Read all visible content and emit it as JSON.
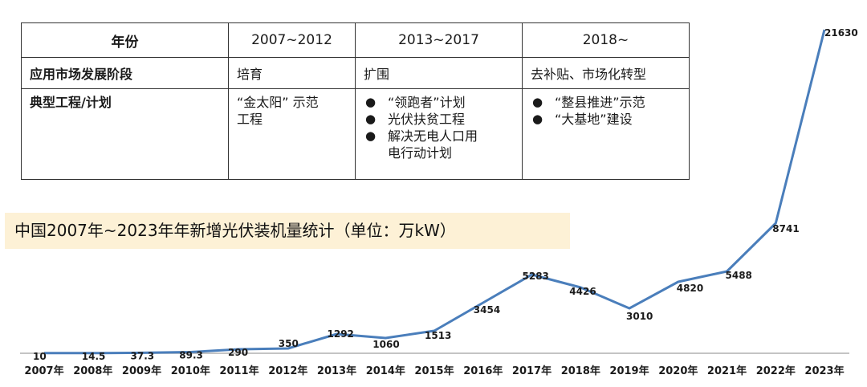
{
  "table": {
    "header": [
      "年份",
      "2007~2012",
      "2013~2017",
      "2018~"
    ],
    "rows": [
      {
        "label": "应用市场发展阶段",
        "cells": [
          [
            "培育"
          ],
          [
            "扩围"
          ],
          [
            "去补贴、市场化转型"
          ]
        ]
      },
      {
        "label": "典型工程/计划",
        "cells": [
          [
            "“金太阳” 示范",
            "工程"
          ],
          [
            "“领跑者”计划",
            "光伏扶贫工程",
            "解决无电人口用",
            "电行动计划"
          ],
          [
            "“整县推进”示范",
            "“大基地”建设"
          ]
        ]
      }
    ],
    "bullet_symbol": "●"
  },
  "chart_title": "中国2007年~2023年年新增光伏装机量统计（单位：万kW）",
  "chart_data": {
    "type": "line",
    "title": "中国2007年~2023年年新增光伏装机量统计（单位：万kW）",
    "unit": "万kW",
    "categories": [
      "2007年",
      "2008年",
      "2009年",
      "2010年",
      "2011年",
      "2012年",
      "2013年",
      "2014年",
      "2015年",
      "2016年",
      "2017年",
      "2018年",
      "2019年",
      "2020年",
      "2021年",
      "2022年",
      "2023年"
    ],
    "values": [
      10,
      14.5,
      37.3,
      89.3,
      290,
      350,
      1292,
      1060,
      1513,
      3454,
      5283,
      4426,
      3010,
      4820,
      5488,
      8741,
      21630
    ],
    "labels": [
      "10",
      "14.5",
      "37.3",
      "89.3",
      "290",
      "350",
      "1292",
      "1060",
      "1513",
      "3454",
      "5283",
      "4426",
      "3010",
      "4820",
      "5488",
      "8741",
      "21630"
    ],
    "xlabel": "",
    "ylabel": "",
    "line_color": "#4a7ebb",
    "axis_color": "#b0b0b0",
    "grid": false,
    "legend": "none"
  }
}
